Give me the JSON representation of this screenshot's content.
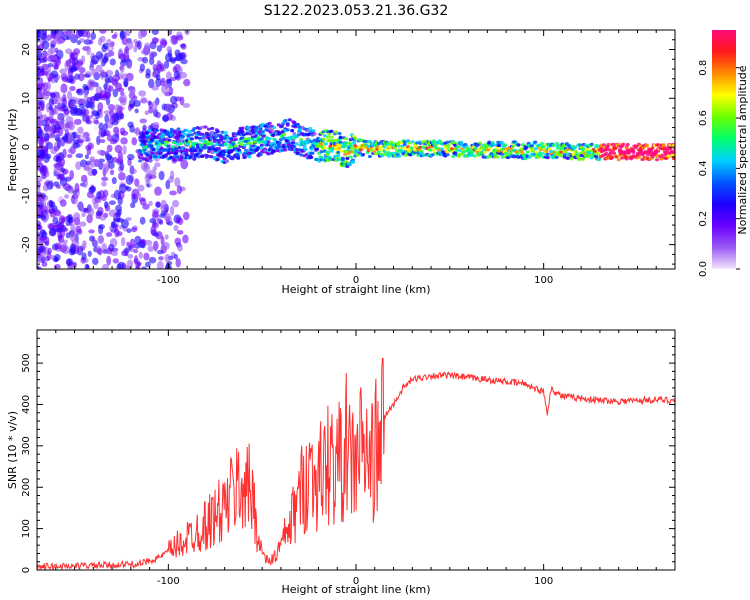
{
  "title": "S122.2023.053.21.36.G32",
  "chart_data": [
    {
      "type": "heatmap",
      "xlabel": "Height of straight line (km)",
      "ylabel": "Frequency (Hz)",
      "xlim": [
        -170,
        170
      ],
      "ylim": [
        -25,
        24
      ],
      "xticks": [
        -100,
        0,
        100
      ],
      "yticks": [
        -20,
        -10,
        0,
        10,
        20
      ],
      "grid": false,
      "colorbar": {
        "label": "Normalized spectral amplitude",
        "range": [
          0.0,
          0.95
        ],
        "ticks": [
          0.0,
          0.2,
          0.4,
          0.6,
          0.8
        ],
        "colors": [
          "#f2e6fb",
          "#9b59f5",
          "#6a00ff",
          "#1c00ff",
          "#0057ff",
          "#00d2ff",
          "#00ff6a",
          "#6aff00",
          "#ffff00",
          "#ff8c00",
          "#ff1a1a",
          "#ff0a7a"
        ]
      },
      "ridge": {
        "x": [
          -115,
          -110,
          -100,
          -90,
          -80,
          -70,
          -60,
          -50,
          -40,
          -35,
          -30,
          -20,
          -10,
          -5,
          0,
          10,
          20,
          40,
          60,
          80,
          85,
          90,
          95,
          100,
          120,
          140,
          160,
          170
        ],
        "y": [
          -1.0,
          1.0,
          0.5,
          0.5,
          1.0,
          0.0,
          1.0,
          1.5,
          2.0,
          2.5,
          1.5,
          0.3,
          0.0,
          -1.5,
          0.0,
          -0.5,
          -0.3,
          -0.3,
          -0.5,
          -0.6,
          -0.5,
          -1.0,
          -0.5,
          -0.8,
          -1.0,
          -1.0,
          -1.0,
          -0.9
        ]
      }
    },
    {
      "type": "line",
      "xlabel": "Height of straight line (km)",
      "ylabel": "SNR (10 * v/v)",
      "xlim": [
        -170,
        170
      ],
      "ylim": [
        0,
        580
      ],
      "xticks": [
        -100,
        0,
        100
      ],
      "yticks": [
        0,
        100,
        200,
        300,
        400,
        500
      ],
      "grid": false,
      "series_color": "#ff3030",
      "x": [
        -170,
        -150,
        -130,
        -115,
        -105,
        -95,
        -85,
        -80,
        -75,
        -70,
        -65,
        -60,
        -55,
        -52,
        -50,
        -47,
        -45,
        -42,
        -40,
        -37,
        -35,
        -30,
        -25,
        -20,
        -15,
        -10,
        -7,
        -5,
        -3,
        0,
        3,
        5,
        8,
        10,
        12,
        15,
        20,
        25,
        30,
        40,
        50,
        60,
        70,
        80,
        90,
        95,
        100,
        102,
        104,
        106,
        110,
        120,
        130,
        140,
        150,
        160,
        170
      ],
      "y": [
        8,
        10,
        12,
        15,
        30,
        60,
        95,
        110,
        130,
        150,
        190,
        210,
        180,
        80,
        40,
        20,
        25,
        40,
        60,
        90,
        110,
        180,
        240,
        220,
        260,
        250,
        280,
        300,
        250,
        270,
        300,
        280,
        250,
        300,
        270,
        370,
        400,
        440,
        460,
        470,
        470,
        465,
        460,
        455,
        450,
        440,
        430,
        380,
        440,
        430,
        420,
        415,
        410,
        408,
        410,
        412,
        410
      ]
    }
  ]
}
